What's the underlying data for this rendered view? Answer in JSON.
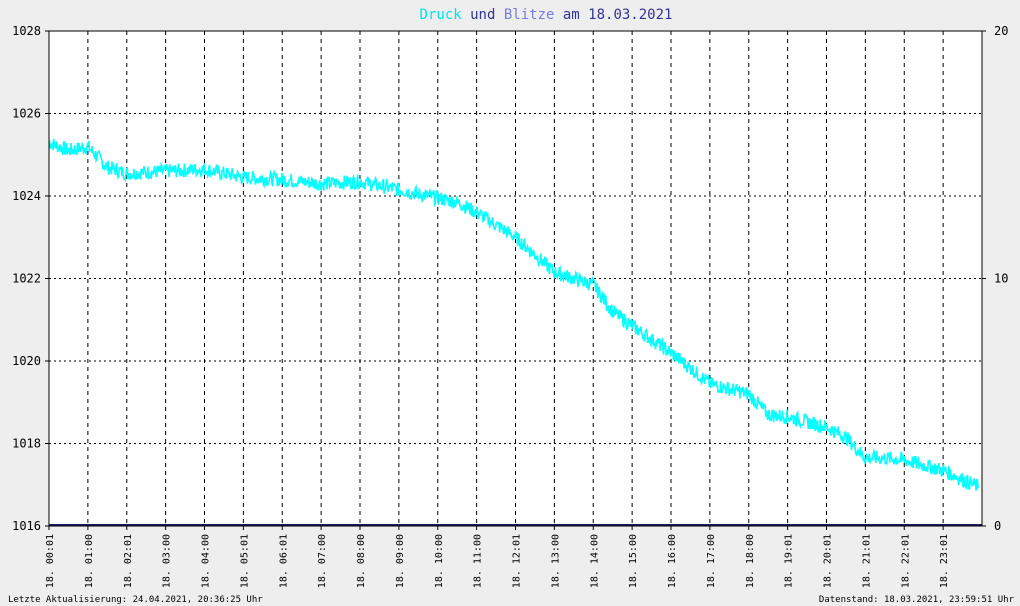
{
  "chart_data": {
    "type": "line",
    "title_parts": [
      {
        "text": "Druck",
        "color": "#00e5e5"
      },
      {
        "text": " und ",
        "color": "#333399"
      },
      {
        "text": "Blitze",
        "color": "#7a7ae0"
      },
      {
        "text": " am 18.03.2021",
        "color": "#333399"
      }
    ],
    "left_axis": {
      "ylim": [
        1016,
        1028
      ],
      "ticks": [
        "1016",
        "1018",
        "1020",
        "1022",
        "1024",
        "1026",
        "1028"
      ]
    },
    "right_axis": {
      "ylim": [
        0,
        20
      ],
      "ticks": [
        "0",
        "10",
        "20"
      ]
    },
    "x_tick_labels": [
      "18. 00:01",
      "18. 01:00",
      "18. 02:01",
      "18. 03:00",
      "18. 04:00",
      "18. 05:01",
      "18. 06:01",
      "18. 07:00",
      "18. 08:00",
      "18. 09:00",
      "18. 10:00",
      "18. 11:00",
      "18. 12:01",
      "18. 13:00",
      "18. 14:00",
      "18. 15:00",
      "18. 16:00",
      "18. 17:00",
      "18. 18:00",
      "18. 19:01",
      "18. 20:01",
      "18. 21:01",
      "18. 22:01",
      "18. 23:01"
    ],
    "grid": true,
    "series": [
      {
        "name": "Druck",
        "axis": "left",
        "color": "#00ffff",
        "x_hours": [
          0,
          0.5,
          1,
          1.5,
          2,
          3,
          4,
          5,
          6,
          7,
          8,
          9,
          10,
          10.5,
          11,
          12,
          13,
          14,
          14.5,
          15,
          16,
          17,
          18,
          18.5,
          19,
          20,
          20.5,
          21,
          21.5,
          22,
          23,
          23.9
        ],
        "values": [
          1025.3,
          1025.1,
          1025.2,
          1024.7,
          1024.55,
          1024.6,
          1024.65,
          1024.45,
          1024.4,
          1024.3,
          1024.35,
          1024.15,
          1023.95,
          1023.85,
          1023.6,
          1023.0,
          1022.15,
          1021.85,
          1021.2,
          1020.85,
          1020.2,
          1019.45,
          1019.2,
          1018.7,
          1018.65,
          1018.4,
          1018.15,
          1017.65,
          1017.65,
          1017.6,
          1017.35,
          1016.95
        ]
      },
      {
        "name": "Blitze",
        "axis": "right",
        "color": "#1a1a66",
        "x_hours": [
          0,
          24
        ],
        "values": [
          0,
          0
        ]
      }
    ]
  },
  "footer": {
    "left": "Letzte Aktualisierung: 24.04.2021, 20:36:25 Uhr",
    "right": "Datenstand: 18.03.2021, 23:59:51 Uhr"
  }
}
